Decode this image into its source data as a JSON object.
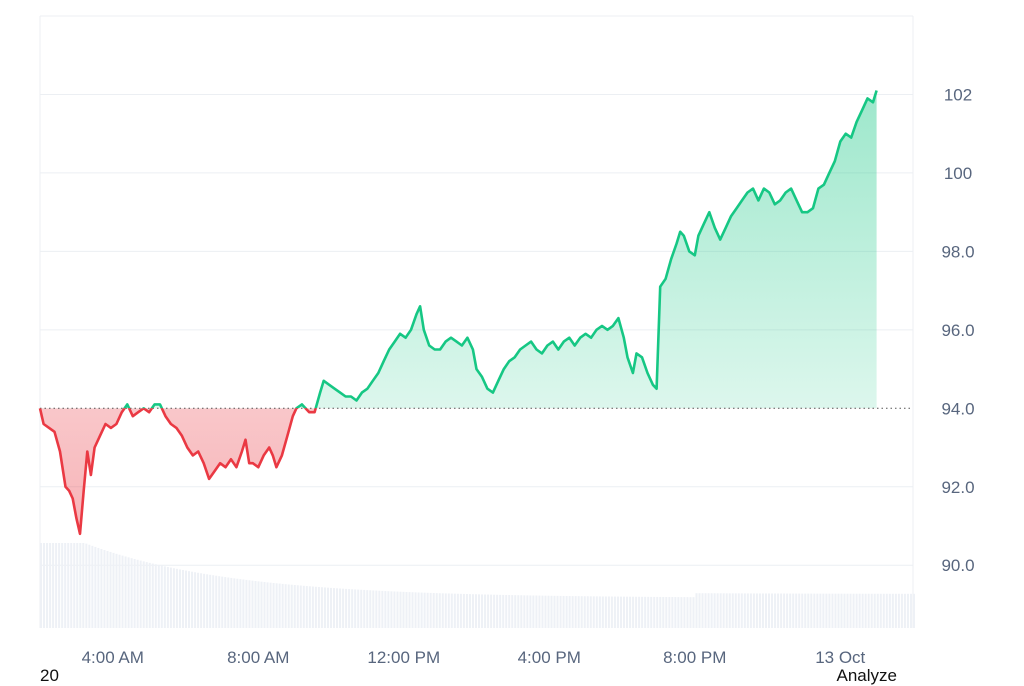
{
  "chart_data": {
    "type": "area",
    "baseline": 94.0,
    "ylim": [
      88.4,
      104.0
    ],
    "yticks": [
      {
        "value": 90.0,
        "label": "90.0"
      },
      {
        "value": 92.0,
        "label": "92.0"
      },
      {
        "value": 94.0,
        "label": "94.0"
      },
      {
        "value": 96.0,
        "label": "96.0"
      },
      {
        "value": 98.0,
        "label": "98.0"
      },
      {
        "value": 100,
        "label": "100"
      },
      {
        "value": 102,
        "label": "102"
      }
    ],
    "xrange_hours": [
      1.0,
      25.0
    ],
    "xticks": [
      {
        "hour": 3.0,
        "label": "4:00 AM"
      },
      {
        "hour": 7.0,
        "label": "8:00 AM"
      },
      {
        "hour": 11.0,
        "label": "12:00 PM"
      },
      {
        "hour": 15.0,
        "label": "4:00 PM"
      },
      {
        "hour": 19.0,
        "label": "8:00 PM"
      },
      {
        "hour": 23.0,
        "label": "13 Oct"
      }
    ],
    "series": [
      {
        "colors": {
          "below": "#ea3943",
          "above": "#16c784"
        },
        "points": [
          [
            1.0,
            94.0
          ],
          [
            1.1,
            93.6
          ],
          [
            1.25,
            93.5
          ],
          [
            1.4,
            93.4
          ],
          [
            1.55,
            92.9
          ],
          [
            1.7,
            92.0
          ],
          [
            1.8,
            91.9
          ],
          [
            1.9,
            91.7
          ],
          [
            2.0,
            91.2
          ],
          [
            2.1,
            90.8
          ],
          [
            2.2,
            91.9
          ],
          [
            2.3,
            92.9
          ],
          [
            2.4,
            92.3
          ],
          [
            2.5,
            93.0
          ],
          [
            2.65,
            93.3
          ],
          [
            2.8,
            93.6
          ],
          [
            2.95,
            93.5
          ],
          [
            3.1,
            93.6
          ],
          [
            3.25,
            93.9
          ],
          [
            3.4,
            94.1
          ],
          [
            3.55,
            93.8
          ],
          [
            3.7,
            93.9
          ],
          [
            3.85,
            94.0
          ],
          [
            4.0,
            93.9
          ],
          [
            4.15,
            94.1
          ],
          [
            4.3,
            94.1
          ],
          [
            4.45,
            93.8
          ],
          [
            4.6,
            93.6
          ],
          [
            4.75,
            93.5
          ],
          [
            4.9,
            93.3
          ],
          [
            5.05,
            93.0
          ],
          [
            5.2,
            92.8
          ],
          [
            5.35,
            92.9
          ],
          [
            5.5,
            92.6
          ],
          [
            5.65,
            92.2
          ],
          [
            5.8,
            92.4
          ],
          [
            5.95,
            92.6
          ],
          [
            6.1,
            92.5
          ],
          [
            6.25,
            92.7
          ],
          [
            6.4,
            92.5
          ],
          [
            6.55,
            92.9
          ],
          [
            6.65,
            93.2
          ],
          [
            6.75,
            92.6
          ],
          [
            6.85,
            92.6
          ],
          [
            7.0,
            92.5
          ],
          [
            7.15,
            92.8
          ],
          [
            7.3,
            93.0
          ],
          [
            7.4,
            92.8
          ],
          [
            7.5,
            92.5
          ],
          [
            7.65,
            92.8
          ],
          [
            7.8,
            93.3
          ],
          [
            7.95,
            93.8
          ],
          [
            8.05,
            94.0
          ],
          [
            8.2,
            94.1
          ],
          [
            8.3,
            94.0
          ],
          [
            8.4,
            93.9
          ],
          [
            8.55,
            93.9
          ],
          [
            8.7,
            94.4
          ],
          [
            8.8,
            94.7
          ],
          [
            8.95,
            94.6
          ],
          [
            9.1,
            94.5
          ],
          [
            9.25,
            94.4
          ],
          [
            9.4,
            94.3
          ],
          [
            9.55,
            94.3
          ],
          [
            9.7,
            94.2
          ],
          [
            9.85,
            94.4
          ],
          [
            10.0,
            94.5
          ],
          [
            10.15,
            94.7
          ],
          [
            10.3,
            94.9
          ],
          [
            10.45,
            95.2
          ],
          [
            10.6,
            95.5
          ],
          [
            10.75,
            95.7
          ],
          [
            10.9,
            95.9
          ],
          [
            11.05,
            95.8
          ],
          [
            11.2,
            96.0
          ],
          [
            11.35,
            96.4
          ],
          [
            11.45,
            96.6
          ],
          [
            11.55,
            96.0
          ],
          [
            11.7,
            95.6
          ],
          [
            11.85,
            95.5
          ],
          [
            12.0,
            95.5
          ],
          [
            12.15,
            95.7
          ],
          [
            12.3,
            95.8
          ],
          [
            12.45,
            95.7
          ],
          [
            12.6,
            95.6
          ],
          [
            12.75,
            95.8
          ],
          [
            12.9,
            95.5
          ],
          [
            13.0,
            95.0
          ],
          [
            13.15,
            94.8
          ],
          [
            13.3,
            94.5
          ],
          [
            13.45,
            94.4
          ],
          [
            13.6,
            94.7
          ],
          [
            13.75,
            95.0
          ],
          [
            13.9,
            95.2
          ],
          [
            14.05,
            95.3
          ],
          [
            14.2,
            95.5
          ],
          [
            14.35,
            95.6
          ],
          [
            14.5,
            95.7
          ],
          [
            14.65,
            95.5
          ],
          [
            14.8,
            95.4
          ],
          [
            14.95,
            95.6
          ],
          [
            15.1,
            95.7
          ],
          [
            15.25,
            95.5
          ],
          [
            15.4,
            95.7
          ],
          [
            15.55,
            95.8
          ],
          [
            15.7,
            95.6
          ],
          [
            15.85,
            95.8
          ],
          [
            16.0,
            95.9
          ],
          [
            16.15,
            95.8
          ],
          [
            16.3,
            96.0
          ],
          [
            16.45,
            96.1
          ],
          [
            16.6,
            96.0
          ],
          [
            16.75,
            96.1
          ],
          [
            16.9,
            96.3
          ],
          [
            17.05,
            95.8
          ],
          [
            17.15,
            95.3
          ],
          [
            17.3,
            94.9
          ],
          [
            17.4,
            95.4
          ],
          [
            17.55,
            95.3
          ],
          [
            17.7,
            94.9
          ],
          [
            17.85,
            94.6
          ],
          [
            17.95,
            94.5
          ],
          [
            18.05,
            97.1
          ],
          [
            18.2,
            97.3
          ],
          [
            18.35,
            97.8
          ],
          [
            18.5,
            98.2
          ],
          [
            18.6,
            98.5
          ],
          [
            18.7,
            98.4
          ],
          [
            18.85,
            98.0
          ],
          [
            19.0,
            97.9
          ],
          [
            19.1,
            98.4
          ],
          [
            19.25,
            98.7
          ],
          [
            19.4,
            99.0
          ],
          [
            19.55,
            98.6
          ],
          [
            19.7,
            98.3
          ],
          [
            19.85,
            98.6
          ],
          [
            20.0,
            98.9
          ],
          [
            20.15,
            99.1
          ],
          [
            20.3,
            99.3
          ],
          [
            20.45,
            99.5
          ],
          [
            20.6,
            99.6
          ],
          [
            20.75,
            99.3
          ],
          [
            20.9,
            99.6
          ],
          [
            21.05,
            99.5
          ],
          [
            21.2,
            99.2
          ],
          [
            21.35,
            99.3
          ],
          [
            21.5,
            99.5
          ],
          [
            21.65,
            99.6
          ],
          [
            21.8,
            99.3
          ],
          [
            21.95,
            99.0
          ],
          [
            22.1,
            99.0
          ],
          [
            22.25,
            99.1
          ],
          [
            22.4,
            99.6
          ],
          [
            22.55,
            99.7
          ],
          [
            22.7,
            100.0
          ],
          [
            22.85,
            100.3
          ],
          [
            23.0,
            100.8
          ],
          [
            23.15,
            101.0
          ],
          [
            23.3,
            100.9
          ],
          [
            23.45,
            101.3
          ],
          [
            23.6,
            101.6
          ],
          [
            23.75,
            101.9
          ],
          [
            23.9,
            101.8
          ],
          [
            24.0,
            102.1
          ]
        ]
      }
    ]
  },
  "footer": {
    "left_text": "20",
    "right_text": "Analyze"
  }
}
